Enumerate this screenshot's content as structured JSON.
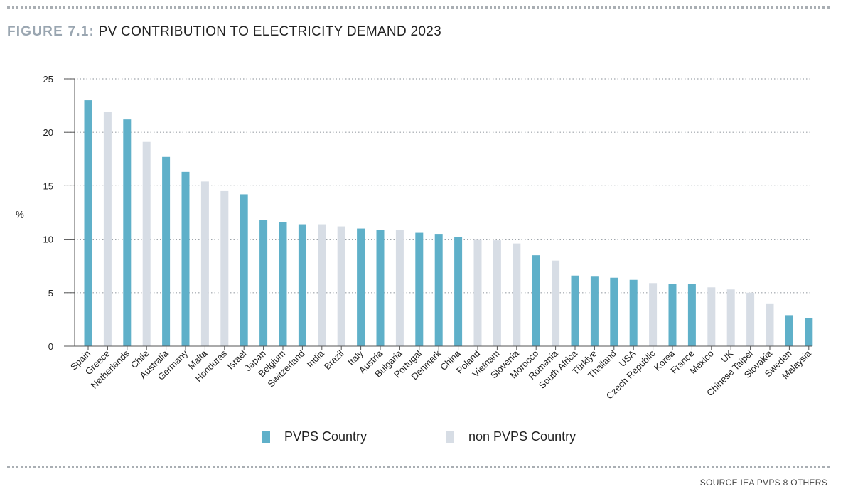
{
  "header": {
    "figure_number": "FIGURE 7.1:",
    "title": "PV CONTRIBUTION TO ELECTRICITY DEMAND 2023"
  },
  "footer": {
    "source": "SOURCE IEA PVPS 8 OTHERS"
  },
  "colors": {
    "pvps": "#5fb0c9",
    "non_pvps": "#d7dde5",
    "grid": "#9ea4aa",
    "axis": "#555555",
    "title_number": "#9aa6b1"
  },
  "legend": {
    "pvps_label": "PVPS Country",
    "non_pvps_label": "non PVPS Country"
  },
  "chart_data": {
    "type": "bar",
    "ylabel": "%",
    "xlabel": "",
    "ylim": [
      0,
      25
    ],
    "yticks": [
      0,
      5,
      10,
      15,
      20,
      25
    ],
    "grid": true,
    "grid_style": "dotted",
    "legend_position": "bottom",
    "categories": [
      "Spain",
      "Greece",
      "Netherlands",
      "Chile",
      "Australia",
      "Germany",
      "Malta",
      "Honduras",
      "Israel",
      "Japan",
      "Belgium",
      "Switzerland",
      "India",
      "Brazil",
      "Italy",
      "Austria",
      "Bulgaria",
      "Portugal",
      "Denmark",
      "China",
      "Poland",
      "Vietnam",
      "Slovenia",
      "Morocco",
      "Romania",
      "South Africa",
      "Türkiye",
      "Thailand",
      "USA",
      "Czech Republic",
      "Korea",
      "France",
      "Mexico",
      "UK",
      "Chinese Taipei",
      "Slovakia",
      "Sweden",
      "Malaysia"
    ],
    "values": [
      23.0,
      21.9,
      21.2,
      19.1,
      17.7,
      16.3,
      15.4,
      14.5,
      14.2,
      11.8,
      11.6,
      11.4,
      11.4,
      11.2,
      11.0,
      10.9,
      10.9,
      10.6,
      10.5,
      10.2,
      10.0,
      9.9,
      9.6,
      8.5,
      8.0,
      6.6,
      6.5,
      6.4,
      6.2,
      5.9,
      5.8,
      5.8,
      5.5,
      5.3,
      5.0,
      4.0,
      2.9,
      2.6
    ],
    "groups": [
      "PVPS Country",
      "non PVPS Country",
      "PVPS Country",
      "non PVPS Country",
      "PVPS Country",
      "PVPS Country",
      "non PVPS Country",
      "non PVPS Country",
      "PVPS Country",
      "PVPS Country",
      "PVPS Country",
      "PVPS Country",
      "non PVPS Country",
      "non PVPS Country",
      "PVPS Country",
      "PVPS Country",
      "non PVPS Country",
      "PVPS Country",
      "PVPS Country",
      "PVPS Country",
      "non PVPS Country",
      "non PVPS Country",
      "non PVPS Country",
      "PVPS Country",
      "non PVPS Country",
      "PVPS Country",
      "PVPS Country",
      "PVPS Country",
      "PVPS Country",
      "non PVPS Country",
      "PVPS Country",
      "PVPS Country",
      "non PVPS Country",
      "non PVPS Country",
      "non PVPS Country",
      "non PVPS Country",
      "PVPS Country",
      "PVPS Country"
    ]
  }
}
